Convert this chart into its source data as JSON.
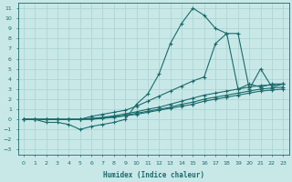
{
  "xlabel": "Humidex (Indice chaleur)",
  "xlim": [
    -0.5,
    23.5
  ],
  "ylim": [
    -3.5,
    11.5
  ],
  "xticks": [
    0,
    1,
    2,
    3,
    4,
    5,
    6,
    7,
    8,
    9,
    10,
    11,
    12,
    13,
    14,
    15,
    16,
    17,
    18,
    19,
    20,
    21,
    22,
    23
  ],
  "yticks": [
    -3,
    -2,
    -1,
    0,
    1,
    2,
    3,
    4,
    5,
    6,
    7,
    8,
    9,
    10,
    11
  ],
  "background_color": "#c8e8e8",
  "grid_color": "#aed4d4",
  "line_color": "#1a6b6b",
  "lines": [
    {
      "x": [
        0,
        1,
        2,
        3,
        4,
        5,
        6,
        7,
        8,
        9,
        10,
        11,
        12,
        13,
        14,
        15,
        16,
        17,
        18,
        19,
        20,
        21,
        22,
        23
      ],
      "y": [
        0,
        0,
        -0.3,
        -0.3,
        -0.5,
        -1.0,
        -0.7,
        -0.5,
        -0.3,
        0,
        1.5,
        2.5,
        4.5,
        7.5,
        9.5,
        11.0,
        10.3,
        9.0,
        8.5,
        8.5,
        3.0,
        5.0,
        3.2,
        3.5
      ]
    },
    {
      "x": [
        0,
        1,
        2,
        3,
        4,
        5,
        6,
        7,
        8,
        9,
        10,
        11,
        12,
        13,
        14,
        15,
        16,
        17,
        18,
        19,
        20,
        21,
        22,
        23
      ],
      "y": [
        0,
        0,
        0,
        0,
        0,
        0,
        0.3,
        0.5,
        0.7,
        0.9,
        1.3,
        1.8,
        2.3,
        2.8,
        3.3,
        3.8,
        4.2,
        7.5,
        8.5,
        3.0,
        3.5,
        3.2,
        3.5,
        3.5
      ]
    },
    {
      "x": [
        0,
        1,
        2,
        3,
        4,
        5,
        6,
        7,
        8,
        9,
        10,
        11,
        12,
        13,
        14,
        15,
        16,
        17,
        18,
        19,
        20,
        21,
        22,
        23
      ],
      "y": [
        0,
        0,
        0,
        0,
        0,
        0,
        0.1,
        0.2,
        0.35,
        0.55,
        0.75,
        1.0,
        1.2,
        1.5,
        1.8,
        2.1,
        2.4,
        2.6,
        2.8,
        3.0,
        3.2,
        3.35,
        3.4,
        3.5
      ]
    },
    {
      "x": [
        0,
        1,
        2,
        3,
        4,
        5,
        6,
        7,
        8,
        9,
        10,
        11,
        12,
        13,
        14,
        15,
        16,
        17,
        18,
        19,
        20,
        21,
        22,
        23
      ],
      "y": [
        0,
        0,
        0,
        0,
        0,
        0,
        0.05,
        0.15,
        0.25,
        0.4,
        0.6,
        0.8,
        1.0,
        1.2,
        1.5,
        1.7,
        2.0,
        2.2,
        2.4,
        2.6,
        2.8,
        3.0,
        3.1,
        3.2
      ]
    },
    {
      "x": [
        0,
        1,
        2,
        3,
        4,
        5,
        6,
        7,
        8,
        9,
        10,
        11,
        12,
        13,
        14,
        15,
        16,
        17,
        18,
        19,
        20,
        21,
        22,
        23
      ],
      "y": [
        0,
        0,
        0,
        0,
        0,
        0,
        0,
        0.1,
        0.2,
        0.35,
        0.5,
        0.7,
        0.9,
        1.1,
        1.3,
        1.5,
        1.8,
        2.0,
        2.2,
        2.4,
        2.6,
        2.8,
        2.9,
        3.0
      ]
    }
  ]
}
